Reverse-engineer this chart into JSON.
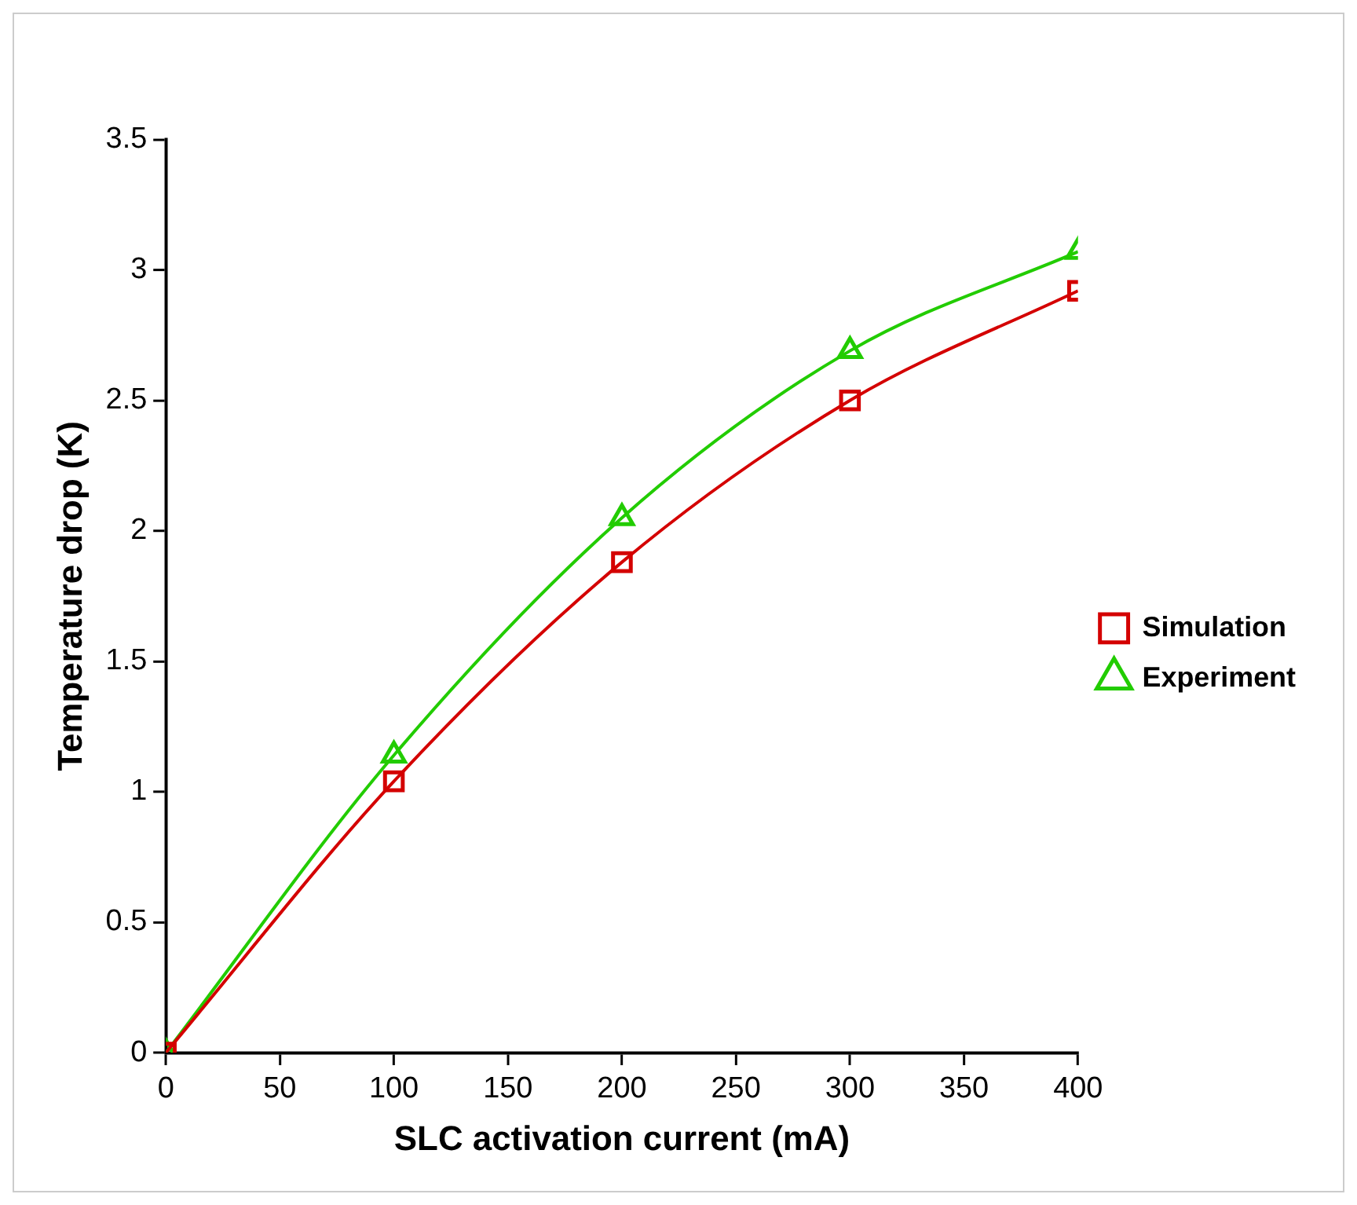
{
  "chart_data": {
    "type": "line",
    "xlabel": "SLC activation current (mA)",
    "ylabel": "Temperature drop (K)",
    "x": [
      0,
      100,
      200,
      300,
      400
    ],
    "series": [
      {
        "name": "Simulation",
        "color": "#d40000",
        "marker": "square",
        "values": [
          0,
          1.04,
          1.88,
          2.5,
          2.92
        ]
      },
      {
        "name": "Experiment",
        "color": "#22cc00",
        "marker": "triangle",
        "values": [
          0,
          1.14,
          2.05,
          2.69,
          3.07
        ]
      }
    ],
    "xlim": [
      0,
      400
    ],
    "xticks": [
      0,
      50,
      100,
      150,
      200,
      250,
      300,
      350,
      400
    ],
    "ylim": [
      0,
      3.5
    ],
    "yticks": [
      0,
      0.5,
      1,
      1.5,
      2,
      2.5,
      3,
      3.5
    ],
    "grid": false,
    "legend": "right",
    "line_style": "solid"
  }
}
